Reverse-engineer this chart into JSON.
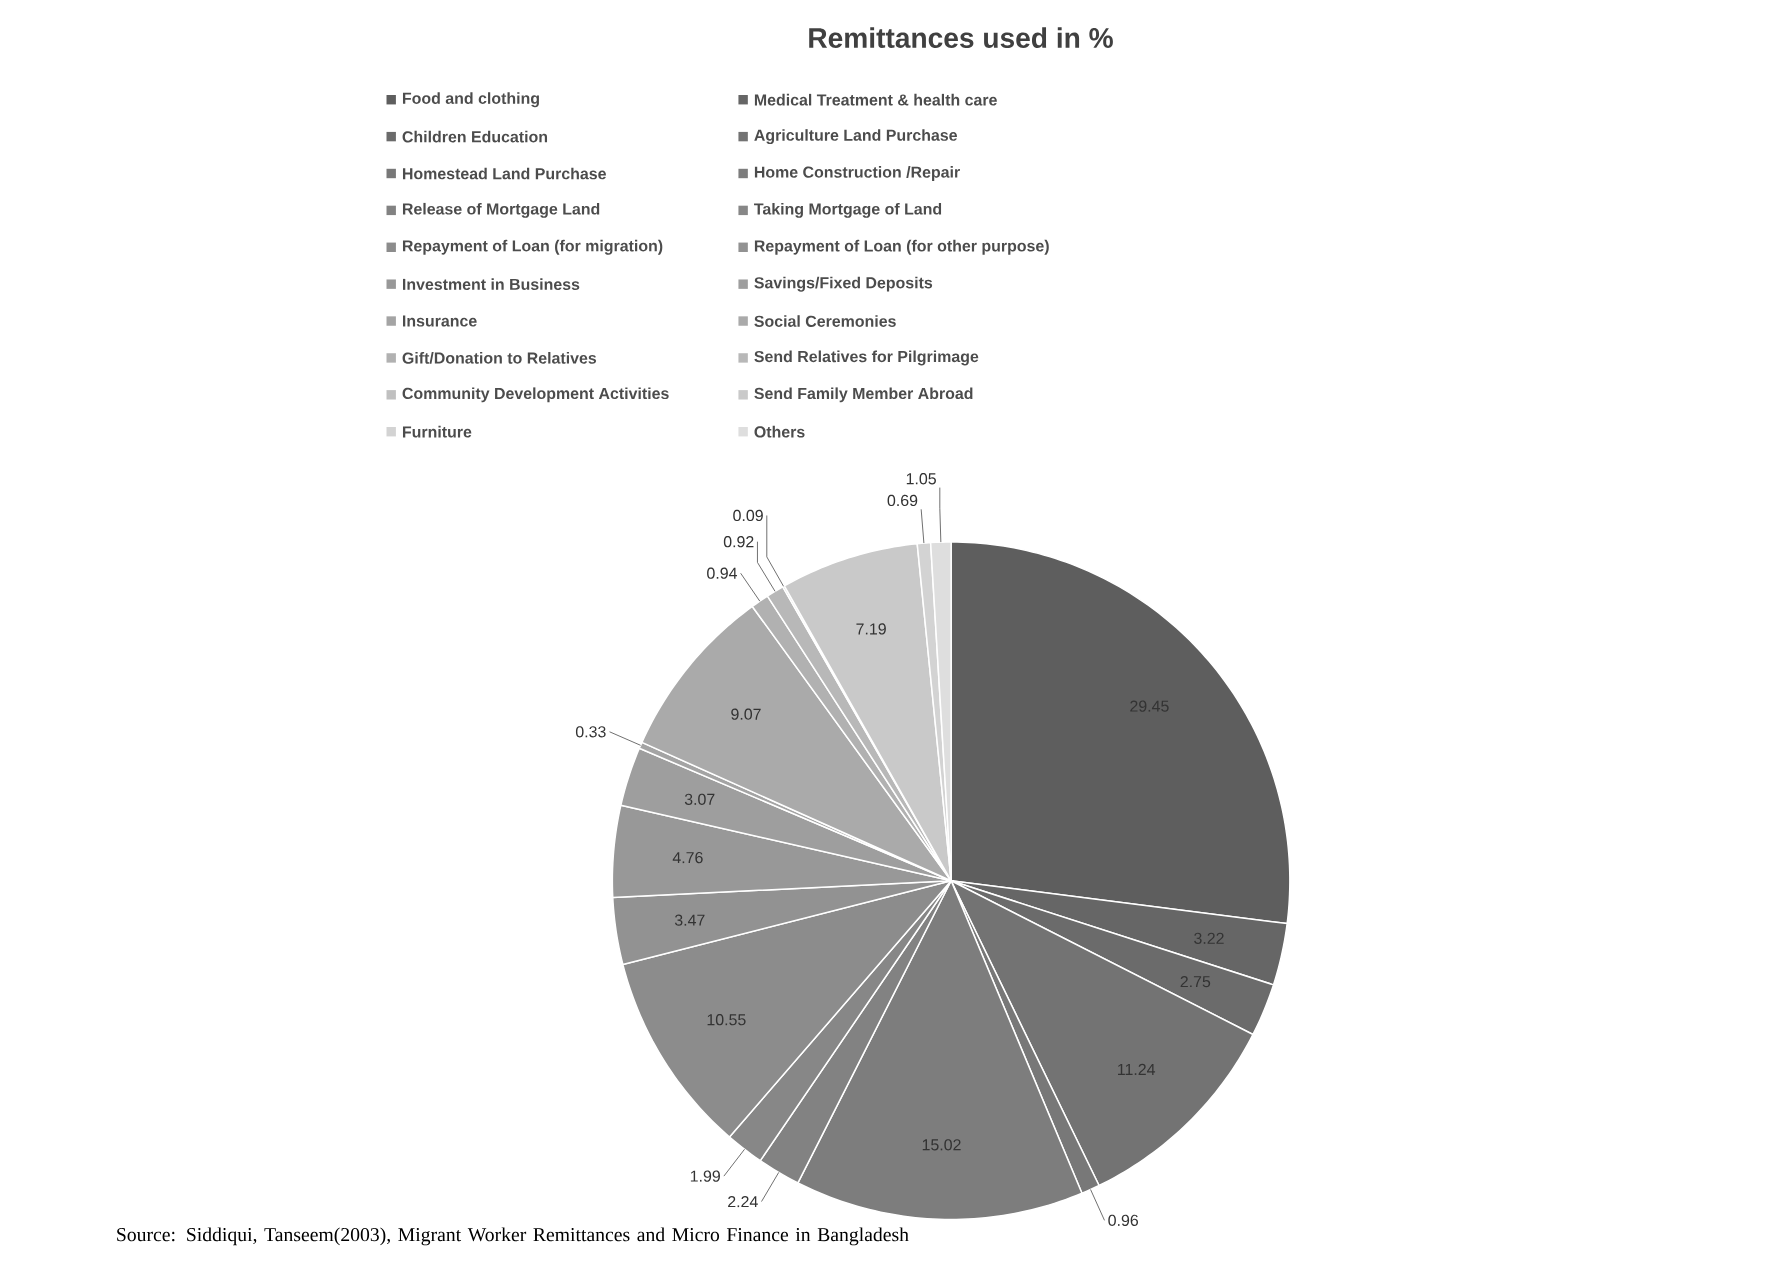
{
  "chart_data": {
    "type": "pie",
    "title": "Remittances used in %",
    "categories": [
      "Food and clothing",
      "Medical Treatment & health care",
      "Children Education",
      "Agriculture Land Purchase",
      "Homestead Land Purchase",
      "Home Construction /Repair",
      "Release of Mortgage Land",
      "Taking Mortgage of Land",
      "Repayment of Loan (for migration)",
      "Repayment of Loan (for other purpose)",
      "Investment in Business",
      "Savings/Fixed Deposits",
      "Insurance",
      "Social Ceremonies",
      "Gift/Donation to Relatives",
      "Send Relatives for Pilgrimage",
      "Community Development Activities",
      "Send Family Member Abroad",
      "Furniture",
      "Others"
    ],
    "values": [
      29.45,
      3.22,
      2.75,
      11.24,
      0.96,
      15.02,
      2.24,
      1.99,
      10.55,
      3.47,
      4.76,
      3.07,
      0.33,
      9.07,
      0.94,
      0.92,
      0.09,
      7.19,
      0.69,
      1.05
    ],
    "colors": [
      "#5e5e5e",
      "#666666",
      "#6b6b6b",
      "#737373",
      "#787878",
      "#7d7d7d",
      "#828282",
      "#878787",
      "#8c8c8c",
      "#929292",
      "#989898",
      "#9e9e9e",
      "#a4a4a4",
      "#aaaaaa",
      "#b1b1b1",
      "#b8b8b8",
      "#c0c0c0",
      "#c9c9c9",
      "#d3d3d3",
      "#dedede"
    ],
    "data_labels": true,
    "legend": "top",
    "annotations": [
      "Source: Siddiqui, Tanseem(2003), Migrant Worker Remittances and Micro Finance in Bangladesh"
    ]
  }
}
